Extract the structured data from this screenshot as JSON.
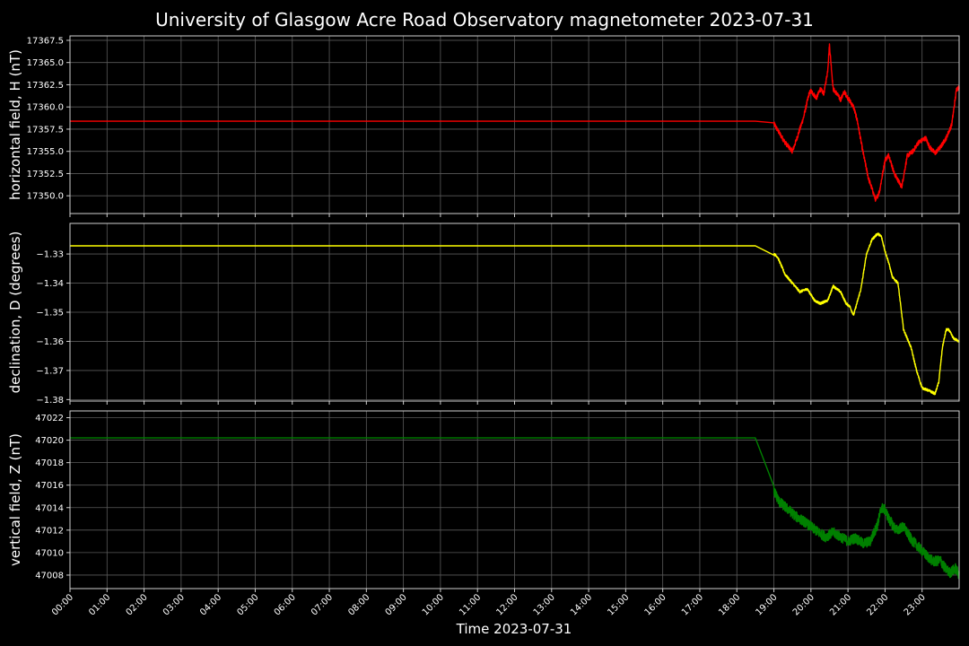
{
  "chart_data": {
    "type": "line",
    "title": "University of Glasgow Acre Road Observatory magnetometer 2023-07-31",
    "xlabel": "Time 2023-07-31",
    "x_tick_labels": [
      "00:00",
      "01:00",
      "02:00",
      "03:00",
      "04:00",
      "05:00",
      "06:00",
      "07:00",
      "08:00",
      "09:00",
      "10:00",
      "11:00",
      "12:00",
      "13:00",
      "14:00",
      "15:00",
      "16:00",
      "17:00",
      "18:00",
      "19:00",
      "20:00",
      "21:00",
      "22:00",
      "23:00"
    ],
    "x_unit": "hours",
    "xlim": [
      0,
      24
    ],
    "grid": true,
    "panels": [
      {
        "id": "H",
        "ylabel": "horizontal field, H (nT)",
        "color": "#ff0000",
        "ylim": [
          17348.0,
          17368.0
        ],
        "yticks": [
          17350.0,
          17352.5,
          17355.0,
          17357.5,
          17360.0,
          17362.5,
          17365.0,
          17367.5
        ],
        "ytick_labels": [
          "17350.0",
          "17352.5",
          "17355.0",
          "17357.5",
          "17360.0",
          "17362.5",
          "17365.0",
          "17367.5"
        ],
        "noise": 0.25,
        "x": [
          0,
          18.6,
          18.65,
          18.75,
          18.85,
          18.95,
          19.1,
          19.3,
          19.5,
          19.6,
          19.8,
          19.95,
          20.0,
          20.15,
          20.25,
          20.35,
          20.45,
          20.5,
          20.55,
          20.6,
          20.7,
          20.8,
          20.9,
          21.0,
          21.15,
          21.25,
          21.4,
          21.55,
          21.75,
          21.85,
          22.0,
          22.1,
          22.25,
          22.45,
          22.6,
          22.75,
          22.9,
          23.1,
          23.2,
          23.35,
          23.5,
          23.65,
          23.8,
          23.93,
          24.0
        ],
        "y": [
          17358.4,
          17358.4,
          17358.9,
          17360.0,
          17359.5,
          17358.5,
          17357.4,
          17356.0,
          17355.0,
          17356.2,
          17358.8,
          17361.5,
          17361.8,
          17361.0,
          17362.0,
          17361.5,
          17364.0,
          17367.0,
          17364.5,
          17362.0,
          17361.5,
          17360.8,
          17361.7,
          17361.0,
          17360.0,
          17358.5,
          17355.0,
          17352.0,
          17349.5,
          17350.5,
          17354.0,
          17354.6,
          17352.5,
          17351.0,
          17354.5,
          17355.0,
          17356.0,
          17356.5,
          17355.5,
          17354.8,
          17355.5,
          17356.5,
          17358.0,
          17362.0,
          17362.2
        ]
      },
      {
        "id": "D",
        "ylabel": "declination, D (degrees)",
        "color": "#ffff00",
        "ylim": [
          -1.3805,
          -1.3195
        ],
        "yticks": [
          -1.33,
          -1.34,
          -1.35,
          -1.36,
          -1.37,
          -1.38
        ],
        "ytick_labels": [
          "−1.33",
          "−1.34",
          "−1.35",
          "−1.36",
          "−1.37",
          "−1.38"
        ],
        "noise": 0.0004,
        "x": [
          0,
          18.55,
          18.65,
          18.72,
          18.8,
          18.9,
          19.0,
          19.1,
          19.3,
          19.5,
          19.7,
          19.9,
          20.1,
          20.25,
          20.45,
          20.6,
          20.8,
          20.95,
          21.05,
          21.15,
          21.35,
          21.5,
          21.65,
          21.8,
          21.9,
          22.0,
          22.1,
          22.2,
          22.35,
          22.5,
          22.7,
          22.85,
          23.0,
          23.2,
          23.35,
          23.45,
          23.55,
          23.65,
          23.72,
          23.85,
          24.0
        ],
        "y": [
          -1.3272,
          -1.3272,
          -1.3285,
          -1.333,
          -1.3345,
          -1.333,
          -1.33,
          -1.331,
          -1.337,
          -1.34,
          -1.343,
          -1.342,
          -1.346,
          -1.347,
          -1.346,
          -1.341,
          -1.343,
          -1.347,
          -1.348,
          -1.351,
          -1.342,
          -1.33,
          -1.325,
          -1.323,
          -1.324,
          -1.329,
          -1.333,
          -1.338,
          -1.34,
          -1.356,
          -1.362,
          -1.37,
          -1.376,
          -1.377,
          -1.378,
          -1.374,
          -1.362,
          -1.356,
          -1.356,
          -1.359,
          -1.36
        ]
      },
      {
        "id": "Z",
        "ylabel": "vertical field, Z (nT)",
        "color": "#008000",
        "ylim": [
          47006.8,
          47022.6
        ],
        "yticks": [
          47008,
          47010,
          47012,
          47014,
          47016,
          47018,
          47020,
          47022
        ],
        "ytick_labels": [
          "47008",
          "47010",
          "47012",
          "47014",
          "47016",
          "47018",
          "47020",
          "47022"
        ],
        "noise": 0.45,
        "x": [
          0,
          18.6,
          18.65,
          18.7,
          18.8,
          18.9,
          19.0,
          19.15,
          19.4,
          19.6,
          19.8,
          20.0,
          20.2,
          20.4,
          20.6,
          20.8,
          21.0,
          21.2,
          21.4,
          21.6,
          21.8,
          21.9,
          22.0,
          22.1,
          22.3,
          22.5,
          22.7,
          22.9,
          23.1,
          23.3,
          23.5,
          23.6,
          23.75,
          23.9,
          24.0
        ],
        "y": [
          47020.2,
          47020.2,
          47021.5,
          47020.5,
          47018.5,
          47016.5,
          47015.5,
          47014.5,
          47013.8,
          47013.2,
          47012.8,
          47012.3,
          47011.8,
          47011.4,
          47011.8,
          47011.4,
          47011.0,
          47011.3,
          47010.8,
          47011.0,
          47012.5,
          47014.0,
          47013.8,
          47013.0,
          47012.0,
          47012.3,
          47011.2,
          47010.5,
          47009.8,
          47009.2,
          47009.3,
          47008.7,
          47008.2,
          47008.6,
          47008.0
        ]
      }
    ]
  }
}
